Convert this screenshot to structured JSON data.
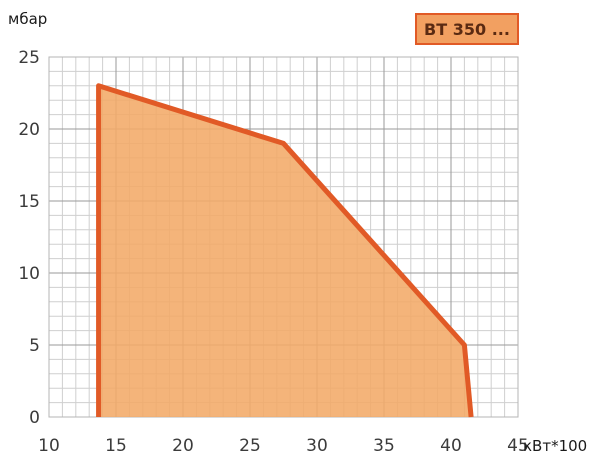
{
  "chart_data": {
    "type": "area",
    "title": "",
    "badge": "BT 350 ...",
    "xlabel": "кВт*100",
    "ylabel": "мбар",
    "xlim": [
      10,
      45
    ],
    "ylim": [
      0,
      25
    ],
    "x_ticks": [
      "10",
      "15",
      "20",
      "25",
      "30",
      "35",
      "40",
      "45"
    ],
    "y_ticks": [
      "0",
      "5",
      "10",
      "15",
      "20",
      "25"
    ],
    "grid": true,
    "series": [
      {
        "points": [
          {
            "x": 13.7,
            "y": 0
          },
          {
            "x": 13.7,
            "y": 23
          },
          {
            "x": 27.5,
            "y": 19
          },
          {
            "x": 41,
            "y": 5
          },
          {
            "x": 41.5,
            "y": 0
          }
        ]
      }
    ],
    "colors": {
      "area_fill": "#f3aa68",
      "outline": "#e15a26",
      "grid_minor": "#cfcfcf",
      "grid_major": "#9a9a9a",
      "badge_fill": "#f2a061",
      "badge_border": "#e15a26"
    }
  }
}
